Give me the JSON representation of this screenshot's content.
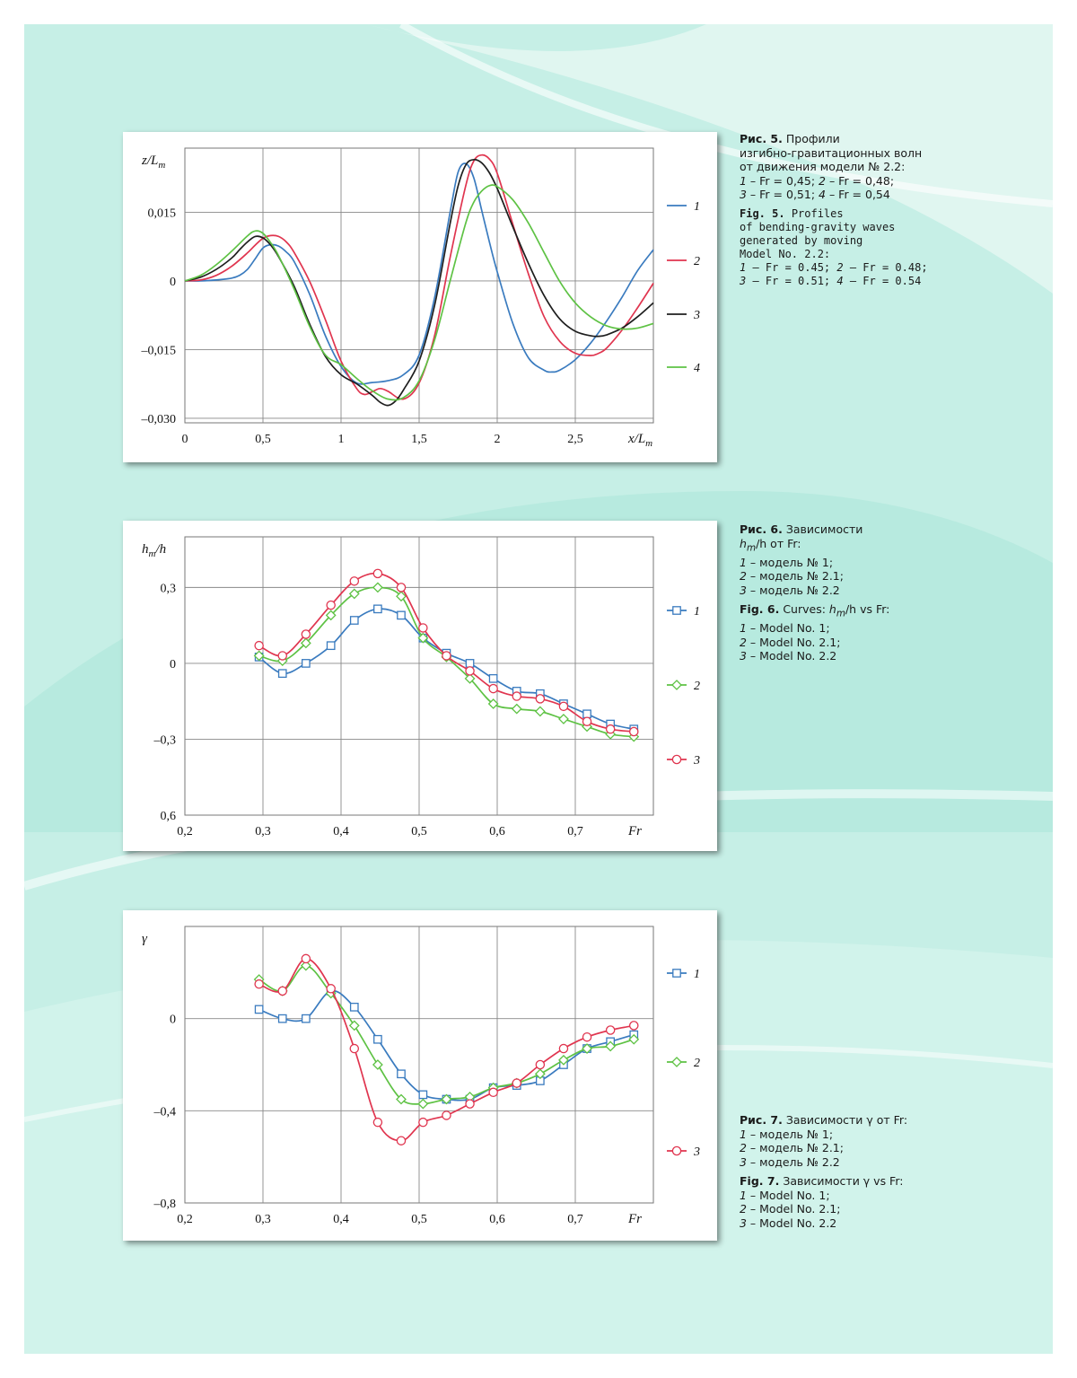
{
  "page": {
    "background_color": "#c6efe6"
  },
  "captions": {
    "fig5": {
      "ru_label": "Рис. 5.",
      "ru_title_1": "Профили",
      "ru_title_2": "изгибно-гравитационных волн",
      "ru_title_3": "от движения модели № 2.2:",
      "ru_items": [
        {
          "n1": "1",
          "t1": " – Fr = 0,45; ",
          "n2": "2",
          "t2": " – Fr = 0,48;"
        },
        {
          "n1": "3",
          "t1": " – Fr = 0,51; ",
          "n2": "4",
          "t2": " – Fr = 0,54"
        }
      ],
      "en_label": "Fig. 5.",
      "en_title_1": "Profiles",
      "en_title_2": "of bending-gravity waves",
      "en_title_3": "generated by moving",
      "en_title_4": "Model No. 2.2:",
      "en_items": [
        {
          "n1": "1",
          "t1": " – Fr = 0.45; ",
          "n2": "2",
          "t2": " – Fr = 0.48;"
        },
        {
          "n1": "3",
          "t1": " – Fr = 0.51; ",
          "n2": "4",
          "t2": " – Fr = 0.54"
        }
      ]
    },
    "fig6": {
      "ru_label": "Рис. 6.",
      "ru_title_1": "Зависимости",
      "ru_title_2_var": "h",
      "ru_title_2_sub": "m",
      "ru_title_2_rest": "/h от Fr:",
      "ru_items": [
        {
          "n": "1",
          "t": " – модель № 1;"
        },
        {
          "n": "2",
          "t": " – модель № 2.1;"
        },
        {
          "n": "3",
          "t": " – модель № 2.2"
        }
      ],
      "en_label": "Fig. 6.",
      "en_title_pre": "Curves: ",
      "en_title_var": "h",
      "en_title_sub": "m",
      "en_title_rest": "/h vs Fr:",
      "en_items": [
        {
          "n": "1",
          "t": " – Model No. 1;"
        },
        {
          "n": "2",
          "t": " – Model No. 2.1;"
        },
        {
          "n": "3",
          "t": " – Model No. 2.2"
        }
      ]
    },
    "fig7": {
      "ru_label": "Рис. 7.",
      "ru_title": "Зависимости γ от Fr:",
      "ru_items": [
        {
          "n": "1",
          "t": " – модель № 1;"
        },
        {
          "n": "2",
          "t": " – модель № 2.1;"
        },
        {
          "n": "3",
          "t": " – модель № 2.2"
        }
      ],
      "en_label": "Fig. 7.",
      "en_title": "Зависимости γ vs Fr:",
      "en_items": [
        {
          "n": "1",
          "t": " – Model No. 1;"
        },
        {
          "n": "2",
          "t": " – Model No. 2.1;"
        },
        {
          "n": "3",
          "t": " – Model No. 2.2"
        }
      ]
    }
  },
  "chart_data": [
    {
      "id": "fig5",
      "type": "line",
      "title": "",
      "xlabel": "x/Lm",
      "ylabel": "z/Lm",
      "xlim": [
        0,
        3
      ],
      "ylim": [
        -0.031,
        0.029
      ],
      "xticks": [
        0,
        0.5,
        1,
        1.5,
        2,
        2.5
      ],
      "xtick_labels": [
        "0",
        "0,5",
        "1",
        "1,5",
        "2",
        "2,5"
      ],
      "yticks": [
        0.015,
        0,
        -0.015,
        -0.03
      ],
      "ytick_labels": [
        "0,015",
        "0",
        "–0,015",
        "–0,030"
      ],
      "grid": true,
      "legend_position": "right",
      "markers": false,
      "series": [
        {
          "name": "1",
          "color": "#3a7bbf",
          "x": [
            0,
            0.1,
            0.2,
            0.3,
            0.35,
            0.4,
            0.45,
            0.5,
            0.55,
            0.6,
            0.65,
            0.7,
            0.8,
            0.9,
            1.0,
            1.1,
            1.2,
            1.3,
            1.4,
            1.5,
            1.6,
            1.7,
            1.75,
            1.8,
            1.85,
            1.9,
            1.95,
            2.0,
            2.1,
            2.2,
            2.3,
            2.35,
            2.4,
            2.5,
            2.6,
            2.7,
            2.8,
            2.9,
            3.0
          ],
          "y": [
            0,
            0,
            0.0002,
            0.0006,
            0.0012,
            0.0025,
            0.0048,
            0.0072,
            0.0079,
            0.0076,
            0.0063,
            0.0042,
            -0.003,
            -0.012,
            -0.0187,
            -0.0223,
            -0.0222,
            -0.0218,
            -0.0205,
            -0.0162,
            -0.0035,
            0.0153,
            0.0238,
            0.0256,
            0.0225,
            0.0155,
            0.0085,
            0.002,
            -0.0093,
            -0.0168,
            -0.0195,
            -0.0199,
            -0.0195,
            -0.0172,
            -0.0135,
            -0.0088,
            -0.0035,
            0.0023,
            0.0068
          ]
        },
        {
          "name": "2",
          "color": "#e0354f",
          "x": [
            0,
            0.1,
            0.2,
            0.3,
            0.4,
            0.45,
            0.5,
            0.55,
            0.6,
            0.65,
            0.7,
            0.8,
            0.9,
            1.0,
            1.1,
            1.15,
            1.2,
            1.25,
            1.3,
            1.4,
            1.5,
            1.6,
            1.7,
            1.8,
            1.85,
            1.9,
            1.95,
            2.0,
            2.1,
            2.2,
            2.3,
            2.4,
            2.5,
            2.6,
            2.65,
            2.7,
            2.8,
            2.9,
            3.0
          ],
          "y": [
            0,
            0.0002,
            0.0012,
            0.0032,
            0.0061,
            0.0078,
            0.0093,
            0.0099,
            0.0097,
            0.0085,
            0.0062,
            -0.0002,
            -0.0085,
            -0.0175,
            -0.0235,
            -0.0248,
            -0.0242,
            -0.0235,
            -0.0241,
            -0.0258,
            -0.0223,
            -0.0118,
            0.0054,
            0.021,
            0.0262,
            0.0275,
            0.0266,
            0.0235,
            0.0124,
            0.0015,
            -0.0078,
            -0.0132,
            -0.0158,
            -0.0163,
            -0.0158,
            -0.0147,
            -0.0107,
            -0.0058,
            -0.0005
          ]
        },
        {
          "name": "3",
          "color": "#1e1e1e",
          "x": [
            0,
            0.1,
            0.2,
            0.3,
            0.35,
            0.4,
            0.45,
            0.5,
            0.55,
            0.6,
            0.7,
            0.8,
            0.9,
            1.0,
            1.1,
            1.2,
            1.25,
            1.3,
            1.35,
            1.4,
            1.5,
            1.6,
            1.7,
            1.75,
            1.8,
            1.85,
            1.9,
            1.95,
            2.0,
            2.1,
            2.2,
            2.3,
            2.4,
            2.5,
            2.6,
            2.65,
            2.7,
            2.8,
            2.9,
            3.0
          ],
          "y": [
            0,
            0.0008,
            0.0025,
            0.005,
            0.0068,
            0.0085,
            0.0097,
            0.0094,
            0.0078,
            0.0053,
            -0.0012,
            -0.0095,
            -0.0165,
            -0.0205,
            -0.0225,
            -0.025,
            -0.0265,
            -0.0272,
            -0.0262,
            -0.0238,
            -0.0175,
            -0.0052,
            0.0128,
            0.0208,
            0.0254,
            0.0265,
            0.0258,
            0.0236,
            0.0202,
            0.0118,
            0.0038,
            -0.0032,
            -0.0083,
            -0.011,
            -0.012,
            -0.0121,
            -0.0118,
            -0.0103,
            -0.0078,
            -0.0048
          ]
        },
        {
          "name": "4",
          "color": "#5ec244",
          "x": [
            0,
            0.1,
            0.2,
            0.3,
            0.4,
            0.45,
            0.5,
            0.55,
            0.6,
            0.7,
            0.8,
            0.9,
            1.0,
            1.1,
            1.2,
            1.3,
            1.4,
            1.5,
            1.6,
            1.7,
            1.8,
            1.85,
            1.9,
            1.95,
            2.0,
            2.1,
            2.2,
            2.3,
            2.4,
            2.5,
            2.6,
            2.7,
            2.8,
            2.9,
            3.0
          ],
          "y": [
            0,
            0.0012,
            0.0035,
            0.0065,
            0.0098,
            0.0109,
            0.0104,
            0.0083,
            0.0055,
            -0.0018,
            -0.01,
            -0.0162,
            -0.0183,
            -0.0213,
            -0.024,
            -0.0258,
            -0.0255,
            -0.0218,
            -0.0128,
            0.0002,
            0.0128,
            0.0172,
            0.0196,
            0.0208,
            0.0206,
            0.0177,
            0.0126,
            0.0062,
            -0.0001,
            -0.0048,
            -0.0079,
            -0.0098,
            -0.0105,
            -0.0103,
            -0.0093
          ]
        }
      ]
    },
    {
      "id": "fig6",
      "type": "line",
      "title": "",
      "xlabel": "Fr",
      "ylabel": "hm/h",
      "xlim": [
        0.2,
        0.8
      ],
      "ylim": [
        -0.6,
        0.5
      ],
      "xticks": [
        0.2,
        0.3,
        0.4,
        0.5,
        0.6,
        0.7
      ],
      "xtick_labels": [
        "0,2",
        "0,3",
        "0,4",
        "0,5",
        "0,6",
        "0,7"
      ],
      "yticks": [
        0.3,
        0,
        -0.3,
        -0.6
      ],
      "ytick_labels": [
        "0,3",
        "0",
        "–0,3",
        "0,6"
      ],
      "grid": true,
      "legend_position": "right",
      "markers": true,
      "x": [
        0.295,
        0.325,
        0.355,
        0.387,
        0.417,
        0.447,
        0.477,
        0.505,
        0.535,
        0.565,
        0.595,
        0.625,
        0.655,
        0.685,
        0.715,
        0.745,
        0.775
      ],
      "series": [
        {
          "name": "1",
          "color": "#3a7bbf",
          "marker": "square",
          "y": [
            0.025,
            -0.04,
            0.0,
            0.07,
            0.17,
            0.215,
            0.19,
            0.1,
            0.04,
            0.0,
            -0.06,
            -0.11,
            -0.12,
            -0.16,
            -0.2,
            -0.24,
            -0.26
          ]
        },
        {
          "name": "2",
          "color": "#5ec244",
          "marker": "diamond",
          "y": [
            0.03,
            0.01,
            0.08,
            0.19,
            0.275,
            0.3,
            0.265,
            0.1,
            0.025,
            -0.06,
            -0.16,
            -0.18,
            -0.19,
            -0.22,
            -0.25,
            -0.28,
            -0.29
          ]
        },
        {
          "name": "3",
          "color": "#e0354f",
          "marker": "circle",
          "y": [
            0.07,
            0.03,
            0.115,
            0.23,
            0.325,
            0.355,
            0.3,
            0.14,
            0.03,
            -0.03,
            -0.1,
            -0.13,
            -0.14,
            -0.17,
            -0.23,
            -0.26,
            -0.27
          ]
        }
      ]
    },
    {
      "id": "fig7",
      "type": "line",
      "title": "",
      "xlabel": "Fr",
      "ylabel": "γ",
      "xlim": [
        0.2,
        0.8
      ],
      "ylim": [
        -0.8,
        0.4
      ],
      "xticks": [
        0.2,
        0.3,
        0.4,
        0.5,
        0.6,
        0.7
      ],
      "xtick_labels": [
        "0,2",
        "0,3",
        "0,4",
        "0,5",
        "0,6",
        "0,7"
      ],
      "yticks": [
        0,
        -0.4,
        -0.8
      ],
      "ytick_labels": [
        "0",
        "–0,4",
        "–0,8"
      ],
      "grid": true,
      "legend_position": "right",
      "markers": true,
      "x": [
        0.295,
        0.325,
        0.355,
        0.387,
        0.417,
        0.447,
        0.477,
        0.505,
        0.535,
        0.565,
        0.595,
        0.625,
        0.655,
        0.685,
        0.715,
        0.745,
        0.775
      ],
      "series": [
        {
          "name": "1",
          "color": "#3a7bbf",
          "marker": "square",
          "y": [
            0.04,
            0.0,
            0.0,
            0.12,
            0.05,
            -0.09,
            -0.24,
            -0.33,
            -0.35,
            -0.35,
            -0.3,
            -0.29,
            -0.27,
            -0.2,
            -0.13,
            -0.1,
            -0.07
          ]
        },
        {
          "name": "2",
          "color": "#5ec244",
          "marker": "diamond",
          "y": [
            0.17,
            0.12,
            0.23,
            0.11,
            -0.03,
            -0.2,
            -0.35,
            -0.37,
            -0.35,
            -0.34,
            -0.3,
            -0.28,
            -0.24,
            -0.18,
            -0.13,
            -0.12,
            -0.09
          ]
        },
        {
          "name": "3",
          "color": "#e0354f",
          "marker": "circle",
          "y": [
            0.15,
            0.12,
            0.26,
            0.13,
            -0.13,
            -0.45,
            -0.53,
            -0.45,
            -0.42,
            -0.37,
            -0.32,
            -0.28,
            -0.2,
            -0.13,
            -0.08,
            -0.05,
            -0.03
          ]
        }
      ]
    }
  ]
}
